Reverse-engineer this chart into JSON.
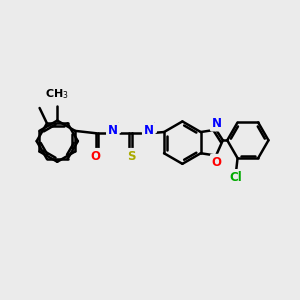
{
  "bg_color": "#ebebeb",
  "bond_color": "#000000",
  "bond_width": 1.8,
  "atom_colors": {
    "N": "#0000ff",
    "O": "#ff0000",
    "S": "#aaaa00",
    "Cl": "#00aa00",
    "C": "#000000"
  },
  "font_size": 8.5,
  "fig_size": [
    3.0,
    3.0
  ],
  "dpi": 100,
  "xlim": [
    0,
    10
  ],
  "ylim": [
    0,
    10
  ]
}
